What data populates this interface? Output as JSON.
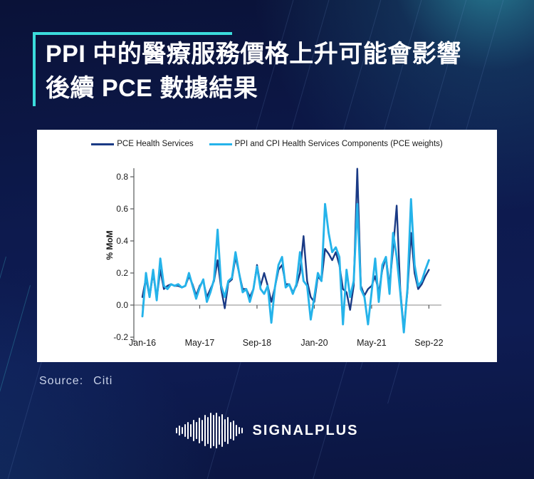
{
  "title": {
    "line1": "PPI 中的醫療服務價格上升可能會影響",
    "line2": "後續 PCE 數據結果"
  },
  "source": {
    "label": "Source:",
    "value": "Citi"
  },
  "logo": {
    "text": "SIGNALPLUS"
  },
  "colors": {
    "background_navy": "#0D1A4E",
    "accent_cyan": "#3BDCDC",
    "panel_white": "#FFFFFF",
    "pce_line": "#1A3A85",
    "ppi_cpi_line": "#25B3EA",
    "zero_line_gray": "#A0A0A0",
    "source_text": "#C9D2E8"
  },
  "chart_data": {
    "type": "line",
    "title": "",
    "xlabel": "",
    "ylabel": "% MoM",
    "ylim": [
      -0.2,
      0.9
    ],
    "y_ticks": [
      0.8,
      0.6,
      0.4,
      0.2,
      0.0,
      -0.2
    ],
    "x_tick_labels": [
      "Jan-16",
      "May-17",
      "Sep-18",
      "Jan-20",
      "May-21",
      "Sep-22"
    ],
    "x_tick_positions": [
      0,
      16,
      32,
      48,
      64,
      80
    ],
    "x_unit": "months since Jan-2016, monthly data Jan-16 to Sep-22",
    "grid": "zero-line only",
    "legend_position": "top-center",
    "series": [
      {
        "name": "PCE Health Services",
        "color": "#1A3A85",
        "values": [
          0.05,
          0.17,
          0.05,
          0.2,
          0.04,
          0.22,
          0.1,
          0.12,
          0.13,
          0.12,
          0.12,
          0.11,
          0.12,
          0.18,
          0.13,
          0.06,
          0.12,
          0.15,
          0.05,
          0.1,
          0.15,
          0.28,
          0.1,
          -0.02,
          0.14,
          0.16,
          0.3,
          0.2,
          0.1,
          0.1,
          0.05,
          0.1,
          0.25,
          0.12,
          0.2,
          0.12,
          0.02,
          0.11,
          0.22,
          0.25,
          0.13,
          0.13,
          0.08,
          0.12,
          0.2,
          0.43,
          0.15,
          0.05,
          0.02,
          0.18,
          0.15,
          0.35,
          0.32,
          0.28,
          0.33,
          0.25,
          0.1,
          0.08,
          -0.03,
          0.12,
          0.85,
          0.12,
          0.06,
          0.1,
          0.12,
          0.18,
          0.08,
          0.22,
          0.3,
          0.12,
          0.35,
          0.62,
          0.1,
          -0.15,
          0.08,
          0.45,
          0.2,
          0.1,
          0.13,
          0.18,
          0.22
        ]
      },
      {
        "name": "PPI and CPI Health Services Components (PCE weights)",
        "color": "#25B3EA",
        "values": [
          -0.07,
          0.2,
          0.05,
          0.22,
          0.03,
          0.29,
          0.12,
          0.1,
          0.13,
          0.12,
          0.13,
          0.11,
          0.12,
          0.2,
          0.12,
          0.04,
          0.11,
          0.16,
          0.02,
          0.08,
          0.16,
          0.47,
          0.12,
          0.05,
          0.15,
          0.17,
          0.33,
          0.2,
          0.08,
          0.1,
          0.02,
          0.1,
          0.24,
          0.1,
          0.07,
          0.12,
          -0.11,
          0.11,
          0.25,
          0.3,
          0.11,
          0.13,
          0.07,
          0.13,
          0.33,
          0.15,
          0.12,
          -0.09,
          0.05,
          0.2,
          0.15,
          0.63,
          0.45,
          0.33,
          0.36,
          0.3,
          -0.12,
          0.22,
          0.05,
          0.15,
          0.63,
          0.1,
          0.05,
          -0.12,
          0.08,
          0.29,
          0.02,
          0.25,
          0.3,
          0.07,
          0.45,
          0.3,
          0.08,
          -0.17,
          0.1,
          0.66,
          0.25,
          0.12,
          0.15,
          0.22,
          0.28
        ]
      }
    ]
  }
}
